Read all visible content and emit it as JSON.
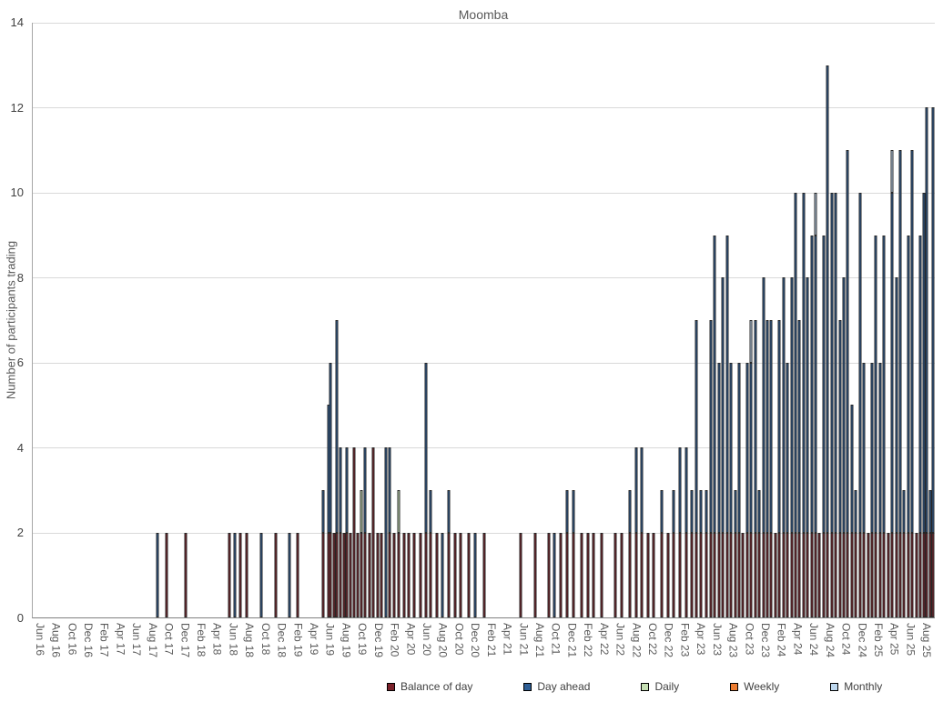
{
  "chart_data": {
    "type": "bar",
    "stacked": true,
    "title": "Moomba",
    "ylabel": "Number of participants trading",
    "xlabel": "",
    "ylim": [
      0,
      14
    ],
    "yticks": [
      0,
      2,
      4,
      6,
      8,
      10,
      12,
      14
    ],
    "grid": true,
    "legend_position": "bottom",
    "x_axis": {
      "span_months": 112,
      "start": "Jun 16",
      "tick_interval_months": 2,
      "tick_labels": [
        "Jun 16",
        "Aug 16",
        "Oct 16",
        "Dec 16",
        "Feb 17",
        "Apr 17",
        "Jun 17",
        "Aug 17",
        "Oct 17",
        "Dec 17",
        "Feb 18",
        "Apr 18",
        "Jun 18",
        "Aug 18",
        "Oct 18",
        "Dec 18",
        "Feb 19",
        "Apr 19",
        "Jun 19",
        "Aug 19",
        "Oct 19",
        "Dec 19",
        "Feb 20",
        "Apr 20",
        "Jun 20",
        "Aug 20",
        "Oct 20",
        "Dec 20",
        "Feb 21",
        "Apr 21",
        "Jun 21",
        "Aug 21",
        "Oct 21",
        "Dec 21",
        "Feb 22",
        "Apr 22",
        "Jun 22",
        "Aug 22",
        "Oct 22",
        "Dec 22",
        "Feb 23",
        "Apr 23",
        "Jun 23",
        "Aug 23",
        "Oct 23",
        "Dec 23",
        "Feb 24",
        "Apr 24",
        "Jun 24",
        "Aug 24",
        "Oct 24",
        "Dec 24",
        "Feb 25",
        "Apr 25",
        "Jun 25",
        "Aug 25"
      ]
    },
    "series": [
      {
        "key": "balance-of-day",
        "label": "Balance of day",
        "color": "#7B222B"
      },
      {
        "key": "day-ahead",
        "label": "Day ahead",
        "color": "#2E5E95"
      },
      {
        "key": "daily",
        "label": "Daily",
        "color": "#C6E0B4"
      },
      {
        "key": "weekly",
        "label": "Weekly",
        "color": "#ED7D31"
      },
      {
        "key": "monthly",
        "label": "Monthly",
        "color": "#BDD7EE"
      }
    ],
    "bars_format": "[month_offset_from_jun16, balance_of_day, day_ahead, daily, weekly, monthly]",
    "bars": [
      [
        15.5,
        0,
        2,
        0,
        0,
        0
      ],
      [
        16.6,
        2,
        0,
        0,
        0,
        0
      ],
      [
        19.0,
        2,
        0,
        0,
        0,
        0
      ],
      [
        24.4,
        2,
        0,
        0,
        0,
        0
      ],
      [
        25.1,
        0,
        2,
        0,
        0,
        0
      ],
      [
        25.8,
        2,
        0,
        0,
        0,
        0
      ],
      [
        26.6,
        2,
        0,
        0,
        0,
        0
      ],
      [
        28.4,
        0,
        2,
        0,
        0,
        0
      ],
      [
        30.2,
        2,
        0,
        0,
        0,
        0
      ],
      [
        31.9,
        0,
        2,
        0,
        0,
        0
      ],
      [
        32.9,
        2,
        0,
        0,
        0,
        0
      ],
      [
        36.1,
        2,
        1,
        0,
        0,
        0
      ],
      [
        36.7,
        2,
        3,
        0,
        0,
        0
      ],
      [
        37.0,
        2,
        4,
        0,
        0,
        0
      ],
      [
        37.4,
        2,
        0,
        0,
        0,
        0
      ],
      [
        37.8,
        2,
        5,
        0,
        0,
        0
      ],
      [
        38.2,
        2,
        2,
        0,
        0,
        0
      ],
      [
        38.6,
        2,
        0,
        0,
        0,
        0
      ],
      [
        39.0,
        2,
        2,
        0,
        0,
        0
      ],
      [
        39.4,
        2,
        0,
        0,
        0,
        0
      ],
      [
        39.9,
        4,
        0,
        0,
        0,
        0
      ],
      [
        40.3,
        2,
        0,
        0,
        0,
        0
      ],
      [
        40.8,
        2,
        0,
        1,
        0,
        0
      ],
      [
        41.3,
        2,
        2,
        0,
        0,
        0
      ],
      [
        41.8,
        2,
        0,
        0,
        0,
        0
      ],
      [
        42.3,
        4,
        0,
        0,
        0,
        0
      ],
      [
        42.8,
        2,
        0,
        0,
        0,
        0
      ],
      [
        43.3,
        2,
        0,
        0,
        0,
        0
      ],
      [
        43.8,
        0,
        4,
        0,
        0,
        0
      ],
      [
        44.3,
        2,
        2,
        0,
        0,
        0
      ],
      [
        44.9,
        2,
        0,
        0,
        0,
        0
      ],
      [
        45.4,
        2,
        0,
        1,
        0,
        0
      ],
      [
        46.1,
        2,
        0,
        0,
        0,
        0
      ],
      [
        46.7,
        2,
        0,
        0,
        0,
        0
      ],
      [
        47.3,
        2,
        0,
        0,
        0,
        0
      ],
      [
        48.1,
        2,
        0,
        0,
        0,
        0
      ],
      [
        48.8,
        2,
        4,
        0,
        0,
        0
      ],
      [
        49.4,
        2,
        1,
        0,
        0,
        0
      ],
      [
        50.2,
        2,
        0,
        0,
        0,
        0
      ],
      [
        50.9,
        0,
        2,
        0,
        0,
        0
      ],
      [
        51.6,
        2,
        1,
        0,
        0,
        0
      ],
      [
        52.4,
        2,
        0,
        0,
        0,
        0
      ],
      [
        53.1,
        2,
        0,
        0,
        0,
        0
      ],
      [
        54.1,
        2,
        0,
        0,
        0,
        0
      ],
      [
        54.9,
        0,
        2,
        0,
        0,
        0
      ],
      [
        56.1,
        2,
        0,
        0,
        0,
        0
      ],
      [
        60.6,
        2,
        0,
        0,
        0,
        0
      ],
      [
        62.4,
        2,
        0,
        0,
        0,
        0
      ],
      [
        64.1,
        2,
        0,
        0,
        0,
        0
      ],
      [
        64.8,
        0,
        2,
        0,
        0,
        0
      ],
      [
        65.5,
        2,
        0,
        0,
        0,
        0
      ],
      [
        66.3,
        2,
        1,
        0,
        0,
        0
      ],
      [
        67.1,
        2,
        1,
        0,
        0,
        0
      ],
      [
        68.1,
        2,
        0,
        0,
        0,
        0
      ],
      [
        68.9,
        2,
        0,
        0,
        0,
        0
      ],
      [
        69.6,
        2,
        0,
        0,
        0,
        0
      ],
      [
        70.6,
        2,
        0,
        0,
        0,
        0
      ],
      [
        72.3,
        2,
        0,
        0,
        0,
        0
      ],
      [
        73.1,
        2,
        0,
        0,
        0,
        0
      ],
      [
        74.1,
        2,
        1,
        0,
        0,
        0
      ],
      [
        74.9,
        2,
        2,
        0,
        0,
        0
      ],
      [
        75.6,
        2,
        2,
        0,
        0,
        0
      ],
      [
        76.4,
        2,
        0,
        0,
        0,
        0
      ],
      [
        77.1,
        2,
        0,
        0,
        0,
        0
      ],
      [
        78.1,
        2,
        1,
        0,
        0,
        0
      ],
      [
        78.9,
        2,
        0,
        0,
        0,
        0
      ],
      [
        79.6,
        2,
        1,
        0,
        0,
        0
      ],
      [
        80.4,
        2,
        2,
        0,
        0,
        0
      ],
      [
        81.1,
        2,
        2,
        0,
        0,
        0
      ],
      [
        81.8,
        2,
        1,
        0,
        0,
        0
      ],
      [
        82.4,
        2,
        5,
        0,
        0,
        0
      ],
      [
        83.0,
        2,
        1,
        0,
        0,
        0
      ],
      [
        83.6,
        2,
        1,
        0,
        0,
        0
      ],
      [
        84.2,
        2,
        5,
        0,
        0,
        0
      ],
      [
        84.7,
        2,
        7,
        0,
        0,
        0
      ],
      [
        85.2,
        2,
        4,
        0,
        0,
        0
      ],
      [
        85.7,
        2,
        6,
        0,
        0,
        0
      ],
      [
        86.2,
        2,
        7,
        0,
        0,
        0
      ],
      [
        86.7,
        2,
        4,
        0,
        0,
        0
      ],
      [
        87.2,
        2,
        1,
        0,
        0,
        0
      ],
      [
        87.7,
        2,
        4,
        0,
        0,
        0
      ],
      [
        88.2,
        2,
        0,
        0,
        0,
        0
      ],
      [
        88.7,
        2,
        4,
        0,
        0,
        0
      ],
      [
        89.2,
        2,
        4,
        0,
        0,
        1
      ],
      [
        89.7,
        2,
        5,
        0,
        0,
        0
      ],
      [
        90.2,
        2,
        1,
        0,
        0,
        0
      ],
      [
        90.7,
        2,
        6,
        0,
        0,
        0
      ],
      [
        91.2,
        2,
        5,
        0,
        0,
        0
      ],
      [
        91.7,
        2,
        5,
        0,
        0,
        0
      ],
      [
        92.2,
        2,
        0,
        0,
        0,
        0
      ],
      [
        92.7,
        2,
        5,
        0,
        0,
        0
      ],
      [
        93.2,
        2,
        6,
        0,
        0,
        0
      ],
      [
        93.7,
        2,
        4,
        0,
        0,
        0
      ],
      [
        94.2,
        2,
        6,
        0,
        0,
        0
      ],
      [
        94.7,
        2,
        8,
        0,
        0,
        0
      ],
      [
        95.2,
        2,
        5,
        0,
        0,
        0
      ],
      [
        95.7,
        2,
        8,
        0,
        0,
        0
      ],
      [
        96.2,
        2,
        6,
        0,
        0,
        0
      ],
      [
        96.7,
        2,
        7,
        0,
        0,
        0
      ],
      [
        97.2,
        2,
        7,
        0,
        0,
        1
      ],
      [
        97.7,
        2,
        0,
        0,
        0,
        0
      ],
      [
        98.2,
        2,
        7,
        0,
        0,
        0
      ],
      [
        98.7,
        2,
        11,
        0,
        0,
        0
      ],
      [
        99.2,
        2,
        8,
        0,
        0,
        0
      ],
      [
        99.7,
        2,
        8,
        0,
        0,
        0
      ],
      [
        100.2,
        2,
        5,
        0,
        0,
        0
      ],
      [
        100.7,
        2,
        6,
        0,
        0,
        0
      ],
      [
        101.2,
        2,
        9,
        0,
        0,
        0
      ],
      [
        101.7,
        2,
        3,
        0,
        0,
        0
      ],
      [
        102.2,
        2,
        1,
        0,
        0,
        0
      ],
      [
        102.7,
        2,
        8,
        0,
        0,
        0
      ],
      [
        103.2,
        2,
        4,
        0,
        0,
        0
      ],
      [
        103.7,
        2,
        0,
        0,
        0,
        0
      ],
      [
        104.2,
        2,
        4,
        0,
        0,
        0
      ],
      [
        104.7,
        2,
        7,
        0,
        0,
        0
      ],
      [
        105.2,
        2,
        4,
        0,
        0,
        0
      ],
      [
        105.7,
        2,
        7,
        0,
        0,
        0
      ],
      [
        106.2,
        2,
        0,
        0,
        0,
        0
      ],
      [
        106.7,
        2,
        8,
        0,
        0,
        1
      ],
      [
        107.2,
        2,
        6,
        0,
        0,
        0
      ],
      [
        107.7,
        2,
        9,
        0,
        0,
        0
      ],
      [
        108.2,
        2,
        1,
        0,
        0,
        0
      ],
      [
        108.7,
        2,
        7,
        0,
        0,
        0
      ],
      [
        109.2,
        2,
        9,
        0,
        0,
        0
      ],
      [
        109.7,
        2,
        0,
        0,
        0,
        0
      ],
      [
        110.2,
        2,
        7,
        0,
        0,
        0
      ],
      [
        110.6,
        2,
        8,
        0,
        0,
        0
      ],
      [
        111.0,
        2,
        10,
        0,
        0,
        0
      ],
      [
        111.4,
        2,
        1,
        0,
        0,
        0
      ],
      [
        111.8,
        2,
        10,
        0,
        0,
        0
      ]
    ]
  }
}
